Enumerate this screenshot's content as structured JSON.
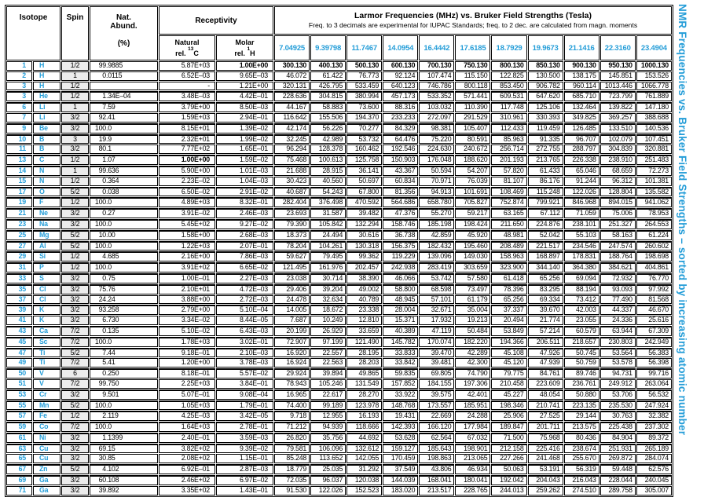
{
  "sidebar_title": "NMR Frequencies vs. Bruker Field Strengths – sorted by increasing atomic number",
  "colors": {
    "accent_blue": "#249dd8",
    "spin_bg": "#ececec"
  },
  "header": {
    "isotope": "Isotope",
    "spin": "Spin",
    "nat_abund_line1": "Nat.",
    "nat_abund_line2": "Abund.",
    "nat_abund_unit": "(%)",
    "receptivity": "Receptivity",
    "natural_line1": "Natural",
    "natural_line2": "rel.",
    "natural_sup": "13",
    "natural_nucleus": "C",
    "molar_line1": "Molar",
    "molar_line2": "rel.",
    "molar_sup": "1",
    "molar_nucleus": "H",
    "larmor_title": "Larmor Frequencies (MHz) vs. Bruker Field Strengths (Tesla)",
    "larmor_subtitle": "Freq. to 3 decimals are experimental for IUPAC Standards; freq. to 2 dec. are calculated from magn. moments",
    "field_strengths": [
      "7.04925",
      "9.39798",
      "11.7467",
      "14.0954",
      "16.4442",
      "17.6185",
      "18.7929",
      "19.9673",
      "21.1416",
      "22.3160",
      "23.4904"
    ]
  },
  "rows": [
    {
      "z": "1",
      "sym": "H",
      "spin": "1/2",
      "abund": "99.9885",
      "nat": "5.87E+03",
      "mol": "1.00E+00",
      "mol_bold": true,
      "freq_bold": true,
      "freqs": [
        "300.130",
        "400.130",
        "500.130",
        "600.130",
        "700.130",
        "750.130",
        "800.130",
        "850.130",
        "900.130",
        "950.130",
        "1000.130"
      ]
    },
    {
      "z": "2",
      "sym": "H",
      "spin": "1",
      "abund": "0.0115",
      "nat": "6.52E–03",
      "mol": "9.65E–03",
      "freqs": [
        "46.072",
        "61.422",
        "76.773",
        "92.124",
        "107.474",
        "115.150",
        "122.825",
        "130.500",
        "138.175",
        "145.851",
        "153.526"
      ]
    },
    {
      "z": "3",
      "sym": "H",
      "spin": "1/2",
      "abund": "",
      "nat": "-",
      "mol": "1.21E+00",
      "freqs": [
        "320.131",
        "426.795",
        "533.459",
        "640.123",
        "746.786",
        "800.118",
        "853.450",
        "906.782",
        "960.114",
        "1013.446",
        "1066.778"
      ]
    },
    {
      "z": "3",
      "sym": "He",
      "spin": "1/2",
      "abund": "1.34E–04",
      "nat": "3.48E–03",
      "mol": "4.42E–01",
      "freqs": [
        "228.636",
        "304.815",
        "380.994",
        "457.173",
        "533.352",
        "571.441",
        "609.531",
        "647.620",
        "685.710",
        "723.799",
        "761.889"
      ]
    },
    {
      "z": "6",
      "sym": "Li",
      "spin": "1",
      "abund": "7.59",
      "nat": "3.79E+00",
      "mol": "8.50E–03",
      "freqs": [
        "44.167",
        "58.883",
        "73.600",
        "88.316",
        "103.032",
        "110.390",
        "117.748",
        "125.106",
        "132.464",
        "139.822",
        "147.180"
      ]
    },
    {
      "z": "7",
      "sym": "Li",
      "spin": "3/2",
      "abund": "92.41",
      "nat": "1.59E+03",
      "mol": "2.94E–01",
      "freqs": [
        "116.642",
        "155.506",
        "194.370",
        "233.233",
        "272.097",
        "291.529",
        "310.961",
        "330.393",
        "349.825",
        "369.257",
        "388.688"
      ]
    },
    {
      "z": "9",
      "sym": "Be",
      "spin": "3/2",
      "abund": "100.0",
      "nat": "8.15E+01",
      "mol": "1.39E–02",
      "freqs": [
        "42.174",
        "56.226",
        "70.277",
        "84.329",
        "98.381",
        "105.407",
        "112.433",
        "119.459",
        "126.485",
        "133.510",
        "140.536"
      ]
    },
    {
      "z": "10",
      "sym": "B",
      "spin": "3",
      "abund": "19.9",
      "nat": "2.32E+01",
      "mol": "1.99E–02",
      "freqs": [
        "32.245",
        "42.989",
        "53.732",
        "64.476",
        "75.220",
        "80.591",
        "85.963",
        "91.335",
        "96.707",
        "102.079",
        "107.451"
      ]
    },
    {
      "z": "11",
      "sym": "B",
      "spin": "3/2",
      "abund": "80.1",
      "nat": "7.77E+02",
      "mol": "1.65E–01",
      "freqs": [
        "96.294",
        "128.378",
        "160.462",
        "192.546",
        "224.630",
        "240.672",
        "256.714",
        "272.755",
        "288.797",
        "304.839",
        "320.881"
      ]
    },
    {
      "z": "13",
      "sym": "C",
      "spin": "1/2",
      "abund": "1.07",
      "nat": "1.00E+00",
      "nat_bold": true,
      "mol": "1.59E–02",
      "freqs": [
        "75.468",
        "100.613",
        "125.758",
        "150.903",
        "176.048",
        "188.620",
        "201.193",
        "213.765",
        "226.338",
        "238.910",
        "251.483"
      ]
    },
    {
      "z": "14",
      "sym": "N",
      "spin": "1",
      "abund": "99.636",
      "nat": "5.90E+00",
      "mol": "1.01E–03",
      "freqs": [
        "21.688",
        "28.915",
        "36.141",
        "43.367",
        "50.594",
        "54.207",
        "57.820",
        "61.433",
        "65.046",
        "68.659",
        "72.273"
      ]
    },
    {
      "z": "15",
      "sym": "N",
      "spin": "1/2",
      "abund": "0.364",
      "nat": "2.23E–02",
      "mol": "1.04E–03",
      "freqs": [
        "30.423",
        "40.560",
        "50.697",
        "60.834",
        "70.971",
        "76.039",
        "81.107",
        "86.176",
        "91.244",
        "96.312",
        "101.381"
      ]
    },
    {
      "z": "17",
      "sym": "O",
      "spin": "5/2",
      "abund": "0.038",
      "nat": "6.50E–02",
      "mol": "2.91E–02",
      "freqs": [
        "40.687",
        "54.243",
        "67.800",
        "81.356",
        "94.913",
        "101.691",
        "108.469",
        "115.248",
        "122.026",
        "128.804",
        "135.582"
      ]
    },
    {
      "z": "19",
      "sym": "F",
      "spin": "1/2",
      "abund": "100.0",
      "nat": "4.89E+03",
      "mol": "8.32E–01",
      "freqs": [
        "282.404",
        "376.498",
        "470.592",
        "564.686",
        "658.780",
        "705.827",
        "752.874",
        "799.921",
        "846.968",
        "894.015",
        "941.062"
      ]
    },
    {
      "z": "21",
      "sym": "Ne",
      "spin": "3/2",
      "abund": "0.27",
      "nat": "3.91E–02",
      "mol": "2.46E–03",
      "freqs": [
        "23.693",
        "31.587",
        "39.482",
        "47.376",
        "55.270",
        "59.217",
        "63.165",
        "67.112",
        "71.059",
        "75.006",
        "78.953"
      ]
    },
    {
      "z": "23",
      "sym": "Na",
      "spin": "3/2",
      "abund": "100.0",
      "nat": "5.45E+02",
      "mol": "9.27E–02",
      "freqs": [
        "79.390",
        "105.842",
        "132.294",
        "158.746",
        "185.198",
        "198.424",
        "211.650",
        "224.876",
        "238.101",
        "251.327",
        "264.553"
      ]
    },
    {
      "z": "25",
      "sym": "Mg",
      "spin": "5/2",
      "abund": "10.00",
      "nat": "1.58E+00",
      "mol": "2.68E–03",
      "freqs": [
        "18.373",
        "24.494",
        "30.616",
        "36.738",
        "42.859",
        "45.920",
        "48.981",
        "52.042",
        "55.103",
        "58.163",
        "61.224"
      ]
    },
    {
      "z": "27",
      "sym": "Al",
      "spin": "5/2",
      "abund": "100.0",
      "nat": "1.22E+03",
      "mol": "2.07E–01",
      "freqs": [
        "78.204",
        "104.261",
        "130.318",
        "156.375",
        "182.432",
        "195.460",
        "208.489",
        "221.517",
        "234.546",
        "247.574",
        "260.602"
      ]
    },
    {
      "z": "29",
      "sym": "Si",
      "spin": "1/2",
      "abund": "4.685",
      "nat": "2.16E+00",
      "mol": "7.86E–03",
      "freqs": [
        "59.627",
        "79.495",
        "99.362",
        "119.229",
        "139.096",
        "149.030",
        "158.963",
        "168.897",
        "178.831",
        "188.764",
        "198.698"
      ]
    },
    {
      "z": "31",
      "sym": "P",
      "spin": "1/2",
      "abund": "100.0",
      "nat": "3.91E+02",
      "mol": "6.65E–02",
      "freqs": [
        "121.495",
        "161.976",
        "202.457",
        "242.938",
        "283.419",
        "303.659",
        "323.900",
        "344.140",
        "364.380",
        "384.621",
        "404.861"
      ]
    },
    {
      "z": "33",
      "sym": "S",
      "spin": "3/2",
      "abund": "0.75",
      "nat": "1.00E–01",
      "mol": "2.27E–03",
      "freqs": [
        "23.038",
        "30.714",
        "38.390",
        "46.066",
        "53.742",
        "57.580",
        "61.418",
        "65.256",
        "69.094",
        "72.932",
        "76.770"
      ]
    },
    {
      "z": "35",
      "sym": "Cl",
      "spin": "3/2",
      "abund": "75.76",
      "nat": "2.10E+01",
      "mol": "4.72E–03",
      "freqs": [
        "29.406",
        "39.204",
        "49.002",
        "58.800",
        "68.598",
        "73.497",
        "78.396",
        "83.295",
        "88.194",
        "93.093",
        "97.992"
      ]
    },
    {
      "z": "37",
      "sym": "Cl",
      "spin": "3/2",
      "abund": "24.24",
      "nat": "3.88E+00",
      "mol": "2.72E–03",
      "freqs": [
        "24.478",
        "32.634",
        "40.789",
        "48.945",
        "57.101",
        "61.179",
        "65.256",
        "69.334",
        "73.412",
        "77.490",
        "81.568"
      ]
    },
    {
      "z": "39",
      "sym": "K",
      "spin": "3/2",
      "abund": "93.258",
      "nat": "2.79E+00",
      "mol": "5.10E–04",
      "freqs": [
        "14.005",
        "18.672",
        "23.338",
        "28.004",
        "32.671",
        "35.004",
        "37.337",
        "39.670",
        "42.003",
        "44.337",
        "46.670"
      ]
    },
    {
      "z": "41",
      "sym": "K",
      "spin": "3/2",
      "abund": "6.730",
      "nat": "3.34E–02",
      "mol": "8.44E–05",
      "freqs": [
        "7.687",
        "10.249",
        "12.810",
        "15.371",
        "17.932",
        "19.213",
        "20.494",
        "21.774",
        "23.055",
        "24.336",
        "25.616"
      ]
    },
    {
      "z": "43",
      "sym": "Ca",
      "spin": "7/2",
      "abund": "0.135",
      "nat": "5.10E–02",
      "mol": "6.43E–03",
      "freqs": [
        "20.199",
        "26.929",
        "33.659",
        "40.389",
        "47.119",
        "50.484",
        "53.849",
        "57.214",
        "60.579",
        "63.944",
        "67.309"
      ]
    },
    {
      "z": "45",
      "sym": "Sc",
      "spin": "7/2",
      "abund": "100.0",
      "nat": "1.78E+03",
      "mol": "3.02E–01",
      "freqs": [
        "72.907",
        "97.199",
        "121.490",
        "145.782",
        "170.074",
        "182.220",
        "194.366",
        "206.511",
        "218.657",
        "230.803",
        "242.949"
      ]
    },
    {
      "z": "47",
      "sym": "Ti",
      "spin": "5/2",
      "abund": "7.44",
      "nat": "9.18E–01",
      "mol": "2.10E–03",
      "freqs": [
        "16.920",
        "22.557",
        "28.195",
        "33.833",
        "39.470",
        "42.289",
        "45.108",
        "47.926",
        "50.745",
        "53.564",
        "56.383"
      ]
    },
    {
      "z": "49",
      "sym": "Ti",
      "spin": "7/2",
      "abund": "5.41",
      "nat": "1.20E+00",
      "mol": "3.78E–03",
      "freqs": [
        "16.924",
        "22.563",
        "28.203",
        "33.842",
        "39.481",
        "42.300",
        "45.120",
        "47.939",
        "50.759",
        "53.578",
        "56.398"
      ]
    },
    {
      "z": "50",
      "sym": "V",
      "spin": "6",
      "abund": "0.250",
      "nat": "8.18E–01",
      "mol": "5.57E–02",
      "freqs": [
        "29.924",
        "39.894",
        "49.865",
        "59.835",
        "69.805",
        "74.790",
        "79.775",
        "84.761",
        "89.746",
        "94.731",
        "99.716"
      ]
    },
    {
      "z": "51",
      "sym": "V",
      "spin": "7/2",
      "abund": "99.750",
      "nat": "2.25E+03",
      "mol": "3.84E–01",
      "freqs": [
        "78.943",
        "105.246",
        "131.549",
        "157.852",
        "184.155",
        "197.306",
        "210.458",
        "223.609",
        "236.761",
        "249.912",
        "263.064"
      ]
    },
    {
      "z": "53",
      "sym": "Cr",
      "spin": "3/2",
      "abund": "9.501",
      "nat": "5.07E–01",
      "mol": "9.08E–04",
      "freqs": [
        "16.965",
        "22.617",
        "28.270",
        "33.922",
        "39.575",
        "42.401",
        "45.227",
        "48.054",
        "50.880",
        "53.706",
        "56.532"
      ]
    },
    {
      "z": "55",
      "sym": "Mn",
      "spin": "5/2",
      "abund": "100.0",
      "nat": "1.05E+03",
      "mol": "1.79E–01",
      "freqs": [
        "74.400",
        "99.189",
        "123.978",
        "148.768",
        "173.557",
        "185.951",
        "198.346",
        "210.741",
        "223.135",
        "235.530",
        "247.924"
      ]
    },
    {
      "z": "57",
      "sym": "Fe",
      "spin": "1/2",
      "abund": "2.119",
      "nat": "4.25E–03",
      "mol": "3.42E–05",
      "freqs": [
        "9.718",
        "12.955",
        "16.193",
        "19.431",
        "22.669",
        "24.288",
        "25.906",
        "27.525",
        "29.144",
        "30.763",
        "32.382"
      ]
    },
    {
      "z": "59",
      "sym": "Co",
      "spin": "7/2",
      "abund": "100.0",
      "nat": "1.64E+03",
      "mol": "2.78E–01",
      "freqs": [
        "71.212",
        "94.939",
        "118.666",
        "142.393",
        "166.120",
        "177.984",
        "189.847",
        "201.711",
        "213.575",
        "225.438",
        "237.302"
      ]
    },
    {
      "z": "61",
      "sym": "Ni",
      "spin": "3/2",
      "abund": "1.1399",
      "nat": "2.40E–01",
      "mol": "3.59E–03",
      "freqs": [
        "26.820",
        "35.756",
        "44.692",
        "53.628",
        "62.564",
        "67.032",
        "71.500",
        "75.968",
        "80.436",
        "84.904",
        "89.372"
      ]
    },
    {
      "z": "63",
      "sym": "Cu",
      "spin": "3/2",
      "abund": "69.15",
      "nat": "3.82E+02",
      "mol": "9.39E–02",
      "freqs": [
        "79.581",
        "106.096",
        "132.612",
        "159.127",
        "185.643",
        "198.901",
        "212.158",
        "225.416",
        "238.674",
        "251.931",
        "265.189"
      ]
    },
    {
      "z": "65",
      "sym": "Cu",
      "spin": "3/2",
      "abund": "30.85",
      "nat": "2.08E+02",
      "mol": "1.15E–01",
      "freqs": [
        "85.248",
        "113.652",
        "142.055",
        "170.459",
        "198.863",
        "213.065",
        "227.266",
        "241.468",
        "255.670",
        "269.872",
        "284.074"
      ]
    },
    {
      "z": "67",
      "sym": "Zn",
      "spin": "5/2",
      "abund": "4.102",
      "nat": "6.92E–01",
      "mol": "2.87E–03",
      "freqs": [
        "18.779",
        "25.035",
        "31.292",
        "37.549",
        "43.806",
        "46.934",
        "50.063",
        "53.191",
        "56.319",
        "59.448",
        "62.576"
      ]
    },
    {
      "z": "69",
      "sym": "Ga",
      "spin": "3/2",
      "abund": "60.108",
      "nat": "2.46E+02",
      "mol": "6.97E–02",
      "freqs": [
        "72.035",
        "96.037",
        "120.038",
        "144.039",
        "168.041",
        "180.041",
        "192.042",
        "204.043",
        "216.043",
        "228.044",
        "240.045"
      ]
    },
    {
      "z": "71",
      "sym": "Ga",
      "spin": "3/2",
      "abund": "39.892",
      "nat": "3.35E+02",
      "mol": "1.43E–01",
      "freqs": [
        "91.530",
        "122.026",
        "152.523",
        "183.020",
        "213.517",
        "228.765",
        "244.013",
        "259.262",
        "274.510",
        "289.758",
        "305.007"
      ]
    }
  ]
}
